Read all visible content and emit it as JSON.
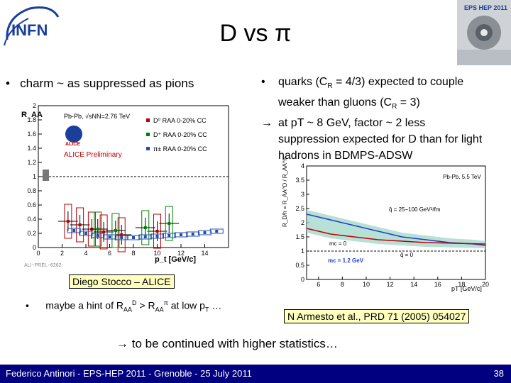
{
  "header": {
    "logo_text": "INFN",
    "title": "D vs π",
    "conf_logo_text": "EPS HEP 2011"
  },
  "left_bullet": {
    "marker": "•",
    "text": "charm ~ as suppressed as pions"
  },
  "right_bullets": [
    {
      "marker": "•",
      "parts": [
        "quarks (C",
        "R",
        " = 4/3) expected to couple"
      ]
    },
    {
      "marker": "",
      "parts": [
        "weaker than gluons (C",
        "R",
        " = 3)"
      ]
    },
    {
      "marker": "→",
      "text": "at pT ~ 8 GeV, factor ~ 2 less"
    },
    {
      "marker": "",
      "text": "suppression expected for D than for light"
    },
    {
      "marker": "",
      "text": "hadrons in BDMPS-ADSW"
    }
  ],
  "left_plot": {
    "ylabel": "R_AA",
    "xlabel": "p_t [GeV/c]",
    "system": "Pb-Pb, √sNN=2.76 TeV",
    "experiment": "ALICE",
    "preliminary": "ALICE Preliminary",
    "caption": "ALI−PREL−6262",
    "legend": [
      "D⁰ RAA 0-20% CC",
      "D⁺ RAA 0-20% CC",
      "π± RAA 0-20% CC"
    ],
    "colors": {
      "d0": "#c00000",
      "dplus": "#008000",
      "pion": "#1f4fb0"
    }
  },
  "right_plot": {
    "ylabel": "R_D/h = R_AA^D / R_AA^h",
    "xlabel": "pT [GeV/c]",
    "label_system": "Pb-Pb, 5.5 TeV",
    "label_q25": "q̂ = 25−100 GeV²/fm",
    "label_mc": "mc = 0",
    "label_mc12": "mc = 1.2 GeV",
    "label_q0": "q̂ = 0",
    "colors": {
      "blue": "#1f3fc8",
      "red": "#c00000",
      "band": "#9fd6c8"
    }
  },
  "chart_data": [
    {
      "type": "scatter",
      "title": "",
      "xlabel": "p_t [GeV/c]",
      "ylabel": "R_AA",
      "xlim": [
        0,
        16
      ],
      "ylim": [
        0,
        2
      ],
      "legend_position": "top-right",
      "grid": false,
      "series": [
        {
          "name": "D⁰ RAA 0-20% CC",
          "x": [
            2.5,
            3.5,
            4.5,
            5.5,
            7,
            10
          ],
          "y": [
            0.37,
            0.32,
            0.26,
            0.22,
            0.18,
            0.23
          ]
        },
        {
          "name": "D⁺ RAA 0-20% CC",
          "x": [
            5.0,
            6.5,
            9.0,
            11.0
          ],
          "y": [
            0.26,
            0.24,
            0.28,
            0.34
          ]
        },
        {
          "name": "π± RAA 0-20% CC",
          "x": [
            3,
            4,
            5,
            6,
            7,
            8,
            9,
            10,
            11,
            12,
            13,
            14,
            15
          ],
          "y": [
            0.24,
            0.2,
            0.17,
            0.15,
            0.14,
            0.14,
            0.15,
            0.16,
            0.17,
            0.18,
            0.19,
            0.21,
            0.23
          ]
        }
      ],
      "yticks": [
        0,
        0.2,
        0.4,
        0.6,
        0.8,
        1,
        1.2,
        1.4,
        1.6,
        1.8,
        2
      ],
      "xticks": [
        0,
        2,
        4,
        6,
        8,
        10,
        12,
        14
      ]
    },
    {
      "type": "line",
      "title": "",
      "xlabel": "pT [GeV/c]",
      "ylabel": "R_D/h",
      "xlim": [
        5,
        20
      ],
      "ylim": [
        0,
        4
      ],
      "grid": false,
      "series": [
        {
          "name": "mc = 0",
          "x": [
            5,
            7,
            9,
            11,
            13,
            15,
            17,
            19,
            20
          ],
          "y": [
            2.3,
            2.1,
            1.9,
            1.7,
            1.5,
            1.4,
            1.3,
            1.25,
            1.2
          ]
        },
        {
          "name": "mc = 1.2 GeV",
          "x": [
            5,
            7,
            9,
            11,
            13,
            15,
            17,
            19,
            20
          ],
          "y": [
            1.8,
            1.6,
            1.5,
            1.4,
            1.35,
            1.3,
            1.28,
            1.26,
            1.25
          ]
        },
        {
          "name": "q̂ = 0",
          "x": [
            5,
            10,
            15,
            20
          ],
          "y": [
            1.0,
            1.0,
            1.0,
            1.0
          ]
        }
      ],
      "yticks": [
        0,
        0.5,
        1,
        1.5,
        2,
        2.5,
        3,
        3.5,
        4
      ],
      "xticks": [
        6,
        8,
        10,
        12,
        14,
        16,
        18,
        20
      ]
    }
  ],
  "author_box": "Diego Stocco – ALICE",
  "hint": {
    "marker": "•",
    "pre": "maybe a hint of R",
    "sub1": "AA",
    "sup1": "D",
    "mid": " > R",
    "sub2": "AA",
    "sup2": "π",
    "post": " at low p",
    "sub3": "T",
    "tail": " …"
  },
  "reference": "N Armesto et al., PRD 71 (2005) 054027",
  "continued": "→ to be continued with higher statistics…",
  "footer": {
    "left": "Federico Antinori - EPS-HEP 2011 - Grenoble - 25 July 2011",
    "page": "38"
  }
}
